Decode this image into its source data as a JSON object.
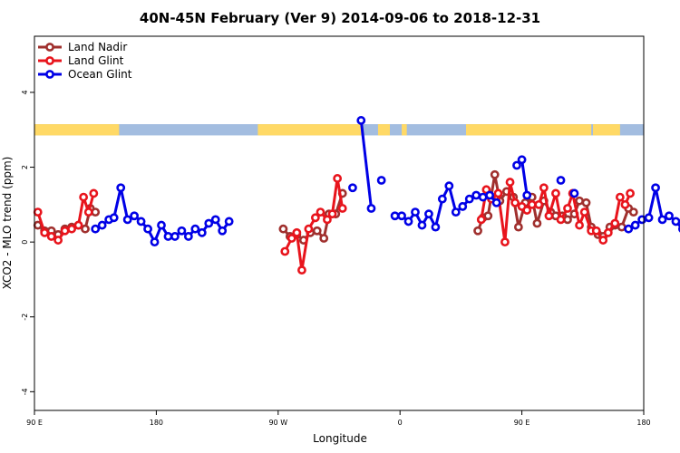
{
  "chart_data": {
    "type": "line",
    "title": "40N-45N February (Ver 9)   2014-09-06 to 2018-12-31",
    "xlabel": "Longitude",
    "ylabel": "XCO2 - MLO trend (ppm)",
    "xlim": [
      90,
      450
    ],
    "ylim": [
      -4.5,
      5.5
    ],
    "x_ticks": [
      {
        "value": 90,
        "label": "90 E"
      },
      {
        "value": 180,
        "label": "180"
      },
      {
        "value": 270,
        "label": "90 W"
      },
      {
        "value": 360,
        "label": "0"
      },
      {
        "value": 450,
        "label": "90 E"
      },
      {
        "value": 540,
        "label": "180"
      }
    ],
    "y_ticks": [
      {
        "value": -4,
        "label": "-4"
      },
      {
        "value": -2,
        "label": "-2"
      },
      {
        "value": 0,
        "label": "0"
      },
      {
        "value": 2,
        "label": "2"
      },
      {
        "value": 4,
        "label": "4"
      }
    ],
    "legend_position": "top-left",
    "land_strip": {
      "y_range": [
        2.85,
        3.15
      ],
      "land_color": "#ffd966",
      "ocean_color": "#a3bde0",
      "land_segments": [
        [
          90,
          140
        ],
        [
          222,
          283
        ],
        [
          293,
          300
        ],
        [
          307,
          310
        ],
        [
          345,
          419
        ],
        [
          420,
          436
        ]
      ]
    },
    "series": [
      {
        "name": "Land Nadir",
        "color": "#a0302e",
        "segments": [
          [
            [
              92,
              0.45
            ],
            [
              96,
              0.3
            ],
            [
              100,
              0.3
            ],
            [
              104,
              0.2
            ],
            [
              108,
              0.35
            ],
            [
              112,
              0.4
            ],
            [
              116,
              0.45
            ],
            [
              120,
              0.35
            ],
            [
              123,
              0.9
            ],
            [
              126,
              0.8
            ]
          ],
          [
            [
              237,
              0.35
            ],
            [
              241,
              0.15
            ],
            [
              245,
              0.2
            ],
            [
              249,
              0.05
            ],
            [
              253,
              0.25
            ],
            [
              257,
              0.3
            ],
            [
              261,
              0.1
            ],
            [
              264,
              0.75
            ],
            [
              268,
              0.75
            ],
            [
              272,
              1.3
            ]
          ],
          [
            [
              352,
              0.3
            ],
            [
              355,
              0.65
            ],
            [
              358,
              0.7
            ],
            [
              362,
              1.8
            ],
            [
              365,
              1.1
            ],
            [
              369,
              1.35
            ],
            [
              373,
              1.2
            ],
            [
              376,
              0.4
            ],
            [
              380,
              1.05
            ],
            [
              384,
              1.2
            ],
            [
              387,
              0.5
            ],
            [
              391,
              1.1
            ],
            [
              395,
              0.8
            ],
            [
              398,
              0.7
            ],
            [
              402,
              0.7
            ],
            [
              405,
              0.6
            ],
            [
              409,
              0.75
            ],
            [
              412,
              1.1
            ],
            [
              416,
              1.05
            ],
            [
              419,
              0.4
            ],
            [
              423,
              0.2
            ],
            [
              426,
              0.15
            ],
            [
              430,
              0.4
            ],
            [
              433,
              0.45
            ],
            [
              437,
              0.4
            ],
            [
              441,
              0.9
            ],
            [
              444,
              0.8
            ]
          ]
        ]
      },
      {
        "name": "Land Glint",
        "color": "#e8141c",
        "segments": [
          [
            [
              92,
              0.8
            ],
            [
              96,
              0.25
            ],
            [
              100,
              0.15
            ],
            [
              104,
              0.05
            ],
            [
              108,
              0.3
            ],
            [
              112,
              0.35
            ],
            [
              116,
              0.45
            ],
            [
              119,
              1.2
            ],
            [
              122,
              0.8
            ],
            [
              125,
              1.3
            ]
          ],
          [
            [
              238,
              -0.25
            ],
            [
              242,
              0.1
            ],
            [
              245,
              0.25
            ],
            [
              248,
              -0.75
            ],
            [
              252,
              0.35
            ],
            [
              256,
              0.65
            ],
            [
              259,
              0.8
            ],
            [
              263,
              0.6
            ],
            [
              266,
              0.75
            ],
            [
              269,
              1.7
            ],
            [
              272,
              0.9
            ]
          ],
          [
            [
              354,
              0.6
            ],
            [
              357,
              1.4
            ],
            [
              360,
              1.15
            ],
            [
              364,
              1.3
            ],
            [
              368,
              0.0
            ],
            [
              371,
              1.6
            ],
            [
              374,
              1.05
            ],
            [
              378,
              0.95
            ],
            [
              381,
              0.85
            ],
            [
              384,
              1.0
            ],
            [
              388,
              1.0
            ],
            [
              391,
              1.45
            ],
            [
              394,
              0.7
            ],
            [
              398,
              1.3
            ],
            [
              401,
              0.6
            ],
            [
              405,
              0.9
            ],
            [
              408,
              1.3
            ],
            [
              412,
              0.45
            ],
            [
              415,
              0.8
            ],
            [
              419,
              0.3
            ],
            [
              422,
              0.3
            ],
            [
              426,
              0.05
            ],
            [
              429,
              0.25
            ],
            [
              433,
              0.5
            ],
            [
              436,
              1.2
            ],
            [
              439,
              1.0
            ],
            [
              442,
              1.3
            ]
          ]
        ]
      },
      {
        "name": "Ocean Glint",
        "color": "#0000e6",
        "segments": [
          [
            [
              126,
              0.35
            ],
            [
              130,
              0.45
            ],
            [
              134,
              0.6
            ],
            [
              137,
              0.65
            ],
            [
              141,
              1.45
            ],
            [
              145,
              0.6
            ],
            [
              149,
              0.7
            ],
            [
              153,
              0.55
            ],
            [
              157,
              0.35
            ],
            [
              161,
              0.0
            ],
            [
              165,
              0.45
            ],
            [
              169,
              0.15
            ],
            [
              173,
              0.15
            ],
            [
              177,
              0.3
            ],
            [
              181,
              0.15
            ],
            [
              185,
              0.35
            ],
            [
              189,
              0.25
            ],
            [
              193,
              0.5
            ],
            [
              197,
              0.6
            ],
            [
              201,
              0.3
            ],
            [
              205,
              0.55
            ]
          ],
          [
            [
              278,
              1.45
            ]
          ],
          [
            [
              283,
              3.25
            ],
            [
              289,
              0.9
            ]
          ],
          [
            [
              295,
              1.65
            ]
          ],
          [
            [
              303,
              0.7
            ],
            [
              307,
              0.7
            ],
            [
              311,
              0.55
            ],
            [
              315,
              0.8
            ],
            [
              319,
              0.45
            ],
            [
              323,
              0.75
            ],
            [
              327,
              0.4
            ],
            [
              331,
              1.15
            ],
            [
              335,
              1.5
            ],
            [
              339,
              0.8
            ],
            [
              343,
              0.95
            ],
            [
              347,
              1.15
            ],
            [
              351,
              1.25
            ],
            [
              355,
              1.2
            ],
            [
              359,
              1.25
            ],
            [
              363,
              1.05
            ]
          ],
          [
            [
              375,
              2.05
            ],
            [
              378,
              2.2
            ],
            [
              381,
              1.25
            ]
          ],
          [
            [
              401,
              1.65
            ]
          ],
          [
            [
              409,
              1.3
            ]
          ],
          [
            [
              441,
              0.35
            ],
            [
              445,
              0.45
            ],
            [
              449,
              0.6
            ],
            [
              453,
              0.65
            ],
            [
              457,
              1.45
            ],
            [
              461,
              0.6
            ],
            [
              465,
              0.7
            ],
            [
              469,
              0.55
            ],
            [
              473,
              0.35
            ],
            [
              477,
              0.0
            ]
          ]
        ]
      }
    ]
  }
}
